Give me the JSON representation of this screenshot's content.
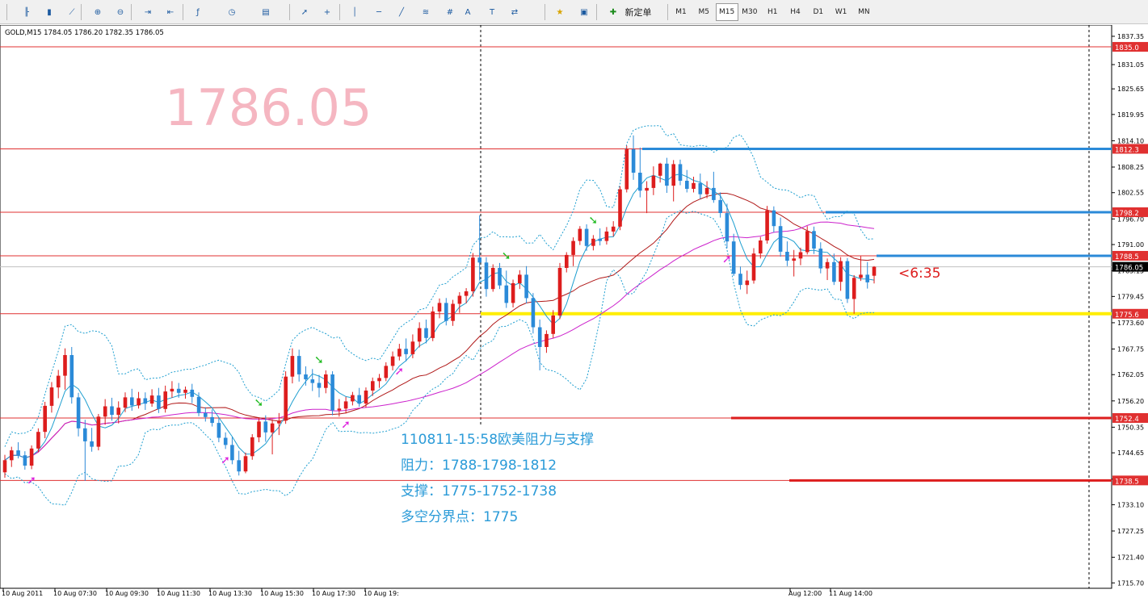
{
  "toolbar": {
    "new_order_label": "新定单",
    "timeframes": [
      {
        "label": "M1",
        "selected": false
      },
      {
        "label": "M5",
        "selected": false
      },
      {
        "label": "M15",
        "selected": true
      },
      {
        "label": "M30",
        "selected": false
      },
      {
        "label": "H1",
        "selected": false
      },
      {
        "label": "H4",
        "selected": false
      },
      {
        "label": "D1",
        "selected": false
      },
      {
        "label": "W1",
        "selected": false
      },
      {
        "label": "MN",
        "selected": false
      }
    ],
    "icons": [
      "bar-chart-icon",
      "candlestick-icon",
      "line-chart-icon",
      "zoom-in-icon",
      "zoom-out-icon",
      "auto-scroll-icon",
      "chart-shift-icon",
      "indicators-icon",
      "periodicity-icon",
      "templates-icon",
      "cursor-icon",
      "crosshair-icon",
      "vertical-line-icon",
      "horizontal-line-icon",
      "trendline-icon",
      "fibonacci-icon",
      "channel-icon",
      "text-icon",
      "text-label-icon",
      "arrows-icon",
      "favorites-icon",
      "navigator-icon",
      "new-order-icon"
    ]
  },
  "chart": {
    "symbol_info": "GOLD,M15  1784.05 1786.20 1782.35 1786.05",
    "big_price": "1786.05",
    "countdown": "<6:35",
    "colors": {
      "bull": "#dd1d1d",
      "bear": "#2b8ad8",
      "resistance": "#2b8ad8",
      "support_key": "#ffee00",
      "support": "#dd1d1d",
      "ma_slow": "#b01818",
      "ma_long": "#cc22cc",
      "band": "#1f9fd0",
      "big_price": "#f5b6c1",
      "annotation": "#2b9bd8"
    },
    "annotation": {
      "line1": "110811-15:58欧美阻力与支撑",
      "line2": "阻力：1788-1798-1812",
      "line3": "支撑：1775-1752-1738",
      "line4": "多空分界点：1775"
    },
    "price_ticks": [
      "1837.35",
      "1831.05",
      "1825.65",
      "1819.95",
      "1814.10",
      "1808.25",
      "1802.55",
      "1796.70",
      "1791.00",
      "1785.15",
      "1779.45",
      "1773.60",
      "1767.75",
      "1762.05",
      "1756.20",
      "1750.35",
      "1744.65",
      "1738.80",
      "1733.10",
      "1727.25",
      "1721.40",
      "1715.70"
    ],
    "price_labels": [
      "1835.0",
      "1812.3",
      "1798.2",
      "1788.5",
      "1786.05",
      "1775.6",
      "1752.4",
      "1738.5"
    ],
    "time_labels": [
      "10 Aug 2011",
      "10 Aug 07:30",
      "10 Aug 09:30",
      "10 Aug 11:30",
      "10 Aug 13:30",
      "10 Aug 15:30",
      "10 Aug 17:30",
      "10 Aug 19:",
      "Aug 12:00",
      "11 Aug 14:00"
    ],
    "chart_data": {
      "type": "candlestick",
      "symbol": "GOLD",
      "timeframe": "M15",
      "current": {
        "open": 1784.05,
        "high": 1786.2,
        "low": 1782.35,
        "close": 1786.05
      },
      "ylim": [
        1714.5,
        1839.5
      ],
      "resistance_levels": [
        1788.5,
        1798.2,
        1812.3
      ],
      "support_levels": [
        1775.6,
        1752.4,
        1738.5
      ],
      "other_levels": [
        1835.0
      ],
      "pivot": 1775,
      "candles": [
        {
          "o": 1740.3,
          "h": 1744.2,
          "l": 1739.1,
          "c": 1743.0
        },
        {
          "o": 1743.0,
          "h": 1746.0,
          "l": 1741.5,
          "c": 1745.2
        },
        {
          "o": 1745.2,
          "h": 1747.0,
          "l": 1743.4,
          "c": 1744.1
        },
        {
          "o": 1744.1,
          "h": 1745.0,
          "l": 1740.9,
          "c": 1741.8
        },
        {
          "o": 1741.8,
          "h": 1746.3,
          "l": 1741.0,
          "c": 1745.6
        },
        {
          "o": 1745.6,
          "h": 1750.1,
          "l": 1744.8,
          "c": 1749.3
        },
        {
          "o": 1749.3,
          "h": 1756.0,
          "l": 1747.9,
          "c": 1755.1
        },
        {
          "o": 1755.1,
          "h": 1760.4,
          "l": 1753.6,
          "c": 1759.2
        },
        {
          "o": 1759.2,
          "h": 1763.1,
          "l": 1756.8,
          "c": 1761.8
        },
        {
          "o": 1761.8,
          "h": 1767.9,
          "l": 1758.7,
          "c": 1766.4
        },
        {
          "o": 1766.4,
          "h": 1768.2,
          "l": 1755.6,
          "c": 1757.0
        },
        {
          "o": 1757.0,
          "h": 1758.0,
          "l": 1748.3,
          "c": 1750.1
        },
        {
          "o": 1750.1,
          "h": 1752.0,
          "l": 1738.4,
          "c": 1747.2
        },
        {
          "o": 1747.2,
          "h": 1750.2,
          "l": 1744.9,
          "c": 1746.0
        },
        {
          "o": 1746.0,
          "h": 1753.3,
          "l": 1745.2,
          "c": 1752.7
        },
        {
          "o": 1752.7,
          "h": 1756.6,
          "l": 1750.9,
          "c": 1755.0
        },
        {
          "o": 1755.0,
          "h": 1756.9,
          "l": 1751.8,
          "c": 1753.1
        },
        {
          "o": 1753.1,
          "h": 1756.1,
          "l": 1751.2,
          "c": 1754.7
        },
        {
          "o": 1754.7,
          "h": 1758.1,
          "l": 1753.7,
          "c": 1757.0
        },
        {
          "o": 1757.0,
          "h": 1758.9,
          "l": 1754.0,
          "c": 1755.2
        },
        {
          "o": 1755.2,
          "h": 1758.2,
          "l": 1754.5,
          "c": 1756.8
        },
        {
          "o": 1756.8,
          "h": 1758.1,
          "l": 1754.2,
          "c": 1755.6
        },
        {
          "o": 1755.6,
          "h": 1758.8,
          "l": 1754.9,
          "c": 1757.4
        },
        {
          "o": 1757.4,
          "h": 1759.1,
          "l": 1753.5,
          "c": 1754.4
        },
        {
          "o": 1754.4,
          "h": 1759.6,
          "l": 1753.6,
          "c": 1758.3
        },
        {
          "o": 1758.3,
          "h": 1760.6,
          "l": 1756.9,
          "c": 1758.9
        },
        {
          "o": 1758.9,
          "h": 1760.2,
          "l": 1756.9,
          "c": 1758.0
        },
        {
          "o": 1758.0,
          "h": 1759.4,
          "l": 1756.7,
          "c": 1758.7
        },
        {
          "o": 1758.7,
          "h": 1760.0,
          "l": 1755.7,
          "c": 1757.1
        },
        {
          "o": 1757.1,
          "h": 1758.1,
          "l": 1752.8,
          "c": 1753.5
        },
        {
          "o": 1753.5,
          "h": 1754.8,
          "l": 1751.6,
          "c": 1752.6
        },
        {
          "o": 1752.6,
          "h": 1754.3,
          "l": 1750.5,
          "c": 1751.3
        },
        {
          "o": 1751.3,
          "h": 1752.3,
          "l": 1747.0,
          "c": 1748.0
        },
        {
          "o": 1748.0,
          "h": 1749.2,
          "l": 1745.5,
          "c": 1746.4
        },
        {
          "o": 1746.4,
          "h": 1748.2,
          "l": 1742.1,
          "c": 1743.0
        },
        {
          "o": 1743.0,
          "h": 1745.1,
          "l": 1739.6,
          "c": 1740.5
        },
        {
          "o": 1740.5,
          "h": 1744.7,
          "l": 1740.1,
          "c": 1743.9
        },
        {
          "o": 1743.9,
          "h": 1748.8,
          "l": 1743.1,
          "c": 1748.1
        },
        {
          "o": 1748.1,
          "h": 1752.5,
          "l": 1747.0,
          "c": 1751.6
        },
        {
          "o": 1751.6,
          "h": 1753.0,
          "l": 1747.1,
          "c": 1749.2
        },
        {
          "o": 1749.2,
          "h": 1752.1,
          "l": 1744.3,
          "c": 1751.2
        },
        {
          "o": 1751.2,
          "h": 1753.5,
          "l": 1748.6,
          "c": 1751.8
        },
        {
          "o": 1751.8,
          "h": 1762.8,
          "l": 1751.1,
          "c": 1761.6
        },
        {
          "o": 1761.6,
          "h": 1767.9,
          "l": 1760.1,
          "c": 1766.2
        },
        {
          "o": 1766.2,
          "h": 1767.6,
          "l": 1760.5,
          "c": 1762.1
        },
        {
          "o": 1762.1,
          "h": 1763.9,
          "l": 1759.6,
          "c": 1761.0
        },
        {
          "o": 1761.0,
          "h": 1763.3,
          "l": 1758.4,
          "c": 1760.2
        },
        {
          "o": 1760.2,
          "h": 1762.0,
          "l": 1757.0,
          "c": 1759.1
        },
        {
          "o": 1759.1,
          "h": 1763.0,
          "l": 1757.9,
          "c": 1762.1
        },
        {
          "o": 1762.1,
          "h": 1762.8,
          "l": 1753.0,
          "c": 1754.1
        },
        {
          "o": 1754.1,
          "h": 1756.6,
          "l": 1752.7,
          "c": 1754.5
        },
        {
          "o": 1754.5,
          "h": 1757.1,
          "l": 1753.4,
          "c": 1756.1
        },
        {
          "o": 1756.1,
          "h": 1758.2,
          "l": 1755.2,
          "c": 1757.5
        },
        {
          "o": 1757.5,
          "h": 1759.1,
          "l": 1754.9,
          "c": 1755.6
        },
        {
          "o": 1755.6,
          "h": 1759.2,
          "l": 1754.7,
          "c": 1758.5
        },
        {
          "o": 1758.5,
          "h": 1761.4,
          "l": 1757.3,
          "c": 1760.6
        },
        {
          "o": 1760.6,
          "h": 1762.2,
          "l": 1759.1,
          "c": 1761.3
        },
        {
          "o": 1761.3,
          "h": 1764.8,
          "l": 1760.6,
          "c": 1764.0
        },
        {
          "o": 1764.0,
          "h": 1767.2,
          "l": 1763.0,
          "c": 1766.1
        },
        {
          "o": 1766.1,
          "h": 1768.9,
          "l": 1765.2,
          "c": 1767.8
        },
        {
          "o": 1767.8,
          "h": 1770.1,
          "l": 1765.0,
          "c": 1766.6
        },
        {
          "o": 1766.6,
          "h": 1771.0,
          "l": 1765.7,
          "c": 1769.4
        },
        {
          "o": 1769.4,
          "h": 1773.7,
          "l": 1768.1,
          "c": 1772.4
        },
        {
          "o": 1772.4,
          "h": 1774.3,
          "l": 1769.0,
          "c": 1770.2
        },
        {
          "o": 1770.2,
          "h": 1777.2,
          "l": 1769.5,
          "c": 1776.1
        },
        {
          "o": 1776.1,
          "h": 1779.0,
          "l": 1774.6,
          "c": 1778.0
        },
        {
          "o": 1778.0,
          "h": 1779.1,
          "l": 1773.0,
          "c": 1774.0
        },
        {
          "o": 1774.0,
          "h": 1778.7,
          "l": 1772.9,
          "c": 1777.8
        },
        {
          "o": 1777.8,
          "h": 1780.4,
          "l": 1775.8,
          "c": 1779.6
        },
        {
          "o": 1779.6,
          "h": 1781.3,
          "l": 1777.9,
          "c": 1780.6
        },
        {
          "o": 1780.6,
          "h": 1789.1,
          "l": 1779.4,
          "c": 1788.1
        },
        {
          "o": 1788.1,
          "h": 1797.5,
          "l": 1783.0,
          "c": 1787.0
        },
        {
          "o": 1787.0,
          "h": 1788.2,
          "l": 1779.4,
          "c": 1781.1
        },
        {
          "o": 1781.1,
          "h": 1786.6,
          "l": 1780.5,
          "c": 1785.8
        },
        {
          "o": 1785.8,
          "h": 1786.9,
          "l": 1781.1,
          "c": 1781.9
        },
        {
          "o": 1781.9,
          "h": 1785.2,
          "l": 1776.9,
          "c": 1778.0
        },
        {
          "o": 1778.0,
          "h": 1783.2,
          "l": 1777.0,
          "c": 1782.4
        },
        {
          "o": 1782.4,
          "h": 1785.3,
          "l": 1781.1,
          "c": 1784.3
        },
        {
          "o": 1784.3,
          "h": 1786.2,
          "l": 1777.9,
          "c": 1779.1
        },
        {
          "o": 1779.1,
          "h": 1780.2,
          "l": 1771.2,
          "c": 1772.6
        },
        {
          "o": 1772.6,
          "h": 1774.3,
          "l": 1763.0,
          "c": 1768.2
        },
        {
          "o": 1768.2,
          "h": 1771.9,
          "l": 1766.9,
          "c": 1771.1
        },
        {
          "o": 1771.1,
          "h": 1776.4,
          "l": 1770.2,
          "c": 1775.2
        },
        {
          "o": 1775.2,
          "h": 1786.9,
          "l": 1774.4,
          "c": 1785.8
        },
        {
          "o": 1785.8,
          "h": 1789.3,
          "l": 1784.8,
          "c": 1788.7
        },
        {
          "o": 1788.7,
          "h": 1792.6,
          "l": 1786.2,
          "c": 1791.8
        },
        {
          "o": 1791.8,
          "h": 1795.1,
          "l": 1790.9,
          "c": 1794.5
        },
        {
          "o": 1794.5,
          "h": 1795.5,
          "l": 1789.6,
          "c": 1790.7
        },
        {
          "o": 1790.7,
          "h": 1793.1,
          "l": 1789.7,
          "c": 1792.3
        },
        {
          "o": 1792.3,
          "h": 1794.6,
          "l": 1790.8,
          "c": 1791.8
        },
        {
          "o": 1791.8,
          "h": 1794.9,
          "l": 1791.0,
          "c": 1793.9
        },
        {
          "o": 1793.9,
          "h": 1796.2,
          "l": 1792.8,
          "c": 1795.0
        },
        {
          "o": 1795.0,
          "h": 1804.0,
          "l": 1794.2,
          "c": 1803.3
        },
        {
          "o": 1803.3,
          "h": 1813.0,
          "l": 1802.6,
          "c": 1812.2
        },
        {
          "o": 1812.2,
          "h": 1815.3,
          "l": 1805.4,
          "c": 1807.0
        },
        {
          "o": 1807.0,
          "h": 1812.6,
          "l": 1801.5,
          "c": 1803.0
        },
        {
          "o": 1803.0,
          "h": 1805.1,
          "l": 1798.0,
          "c": 1803.6
        },
        {
          "o": 1803.6,
          "h": 1808.4,
          "l": 1802.0,
          "c": 1806.3
        },
        {
          "o": 1806.3,
          "h": 1809.2,
          "l": 1804.8,
          "c": 1809.0
        },
        {
          "o": 1809.0,
          "h": 1810.3,
          "l": 1802.5,
          "c": 1804.1
        },
        {
          "o": 1804.1,
          "h": 1809.8,
          "l": 1800.6,
          "c": 1808.9
        },
        {
          "o": 1808.9,
          "h": 1809.9,
          "l": 1804.2,
          "c": 1805.2
        },
        {
          "o": 1805.2,
          "h": 1807.6,
          "l": 1802.6,
          "c": 1803.4
        },
        {
          "o": 1803.4,
          "h": 1806.1,
          "l": 1802.6,
          "c": 1804.7
        },
        {
          "o": 1804.7,
          "h": 1806.8,
          "l": 1801.2,
          "c": 1802.2
        },
        {
          "o": 1802.2,
          "h": 1805.1,
          "l": 1801.3,
          "c": 1803.6
        },
        {
          "o": 1803.6,
          "h": 1807.2,
          "l": 1800.3,
          "c": 1800.9
        },
        {
          "o": 1800.9,
          "h": 1802.6,
          "l": 1797.0,
          "c": 1798.0
        },
        {
          "o": 1798.0,
          "h": 1800.1,
          "l": 1790.2,
          "c": 1791.7
        },
        {
          "o": 1791.7,
          "h": 1793.4,
          "l": 1784.0,
          "c": 1784.5
        },
        {
          "o": 1784.5,
          "h": 1786.1,
          "l": 1781.0,
          "c": 1782.0
        },
        {
          "o": 1782.0,
          "h": 1785.2,
          "l": 1780.0,
          "c": 1783.0
        },
        {
          "o": 1783.0,
          "h": 1790.2,
          "l": 1782.3,
          "c": 1789.0
        },
        {
          "o": 1789.0,
          "h": 1792.7,
          "l": 1787.9,
          "c": 1791.9
        },
        {
          "o": 1791.9,
          "h": 1799.6,
          "l": 1791.2,
          "c": 1798.6
        },
        {
          "o": 1798.6,
          "h": 1799.5,
          "l": 1793.7,
          "c": 1795.1
        },
        {
          "o": 1795.1,
          "h": 1797.0,
          "l": 1788.3,
          "c": 1789.4
        },
        {
          "o": 1789.4,
          "h": 1791.7,
          "l": 1786.2,
          "c": 1787.4
        },
        {
          "o": 1787.4,
          "h": 1789.8,
          "l": 1783.9,
          "c": 1787.9
        },
        {
          "o": 1787.9,
          "h": 1790.3,
          "l": 1786.4,
          "c": 1789.3
        },
        {
          "o": 1789.3,
          "h": 1795.1,
          "l": 1788.8,
          "c": 1794.0
        },
        {
          "o": 1794.0,
          "h": 1795.0,
          "l": 1788.9,
          "c": 1790.1
        },
        {
          "o": 1790.1,
          "h": 1791.5,
          "l": 1784.6,
          "c": 1785.7
        },
        {
          "o": 1785.7,
          "h": 1787.9,
          "l": 1783.1,
          "c": 1787.1
        },
        {
          "o": 1787.1,
          "h": 1789.0,
          "l": 1782.0,
          "c": 1782.7
        },
        {
          "o": 1782.7,
          "h": 1788.2,
          "l": 1780.7,
          "c": 1787.3
        },
        {
          "o": 1787.3,
          "h": 1788.0,
          "l": 1778.0,
          "c": 1778.9
        },
        {
          "o": 1778.9,
          "h": 1784.2,
          "l": 1775.6,
          "c": 1783.6
        },
        {
          "o": 1783.6,
          "h": 1788.4,
          "l": 1782.9,
          "c": 1784.3
        },
        {
          "o": 1784.3,
          "h": 1787.1,
          "l": 1781.2,
          "c": 1782.6
        },
        {
          "o": 1784.05,
          "h": 1786.2,
          "l": 1782.35,
          "c": 1786.05
        }
      ]
    }
  }
}
